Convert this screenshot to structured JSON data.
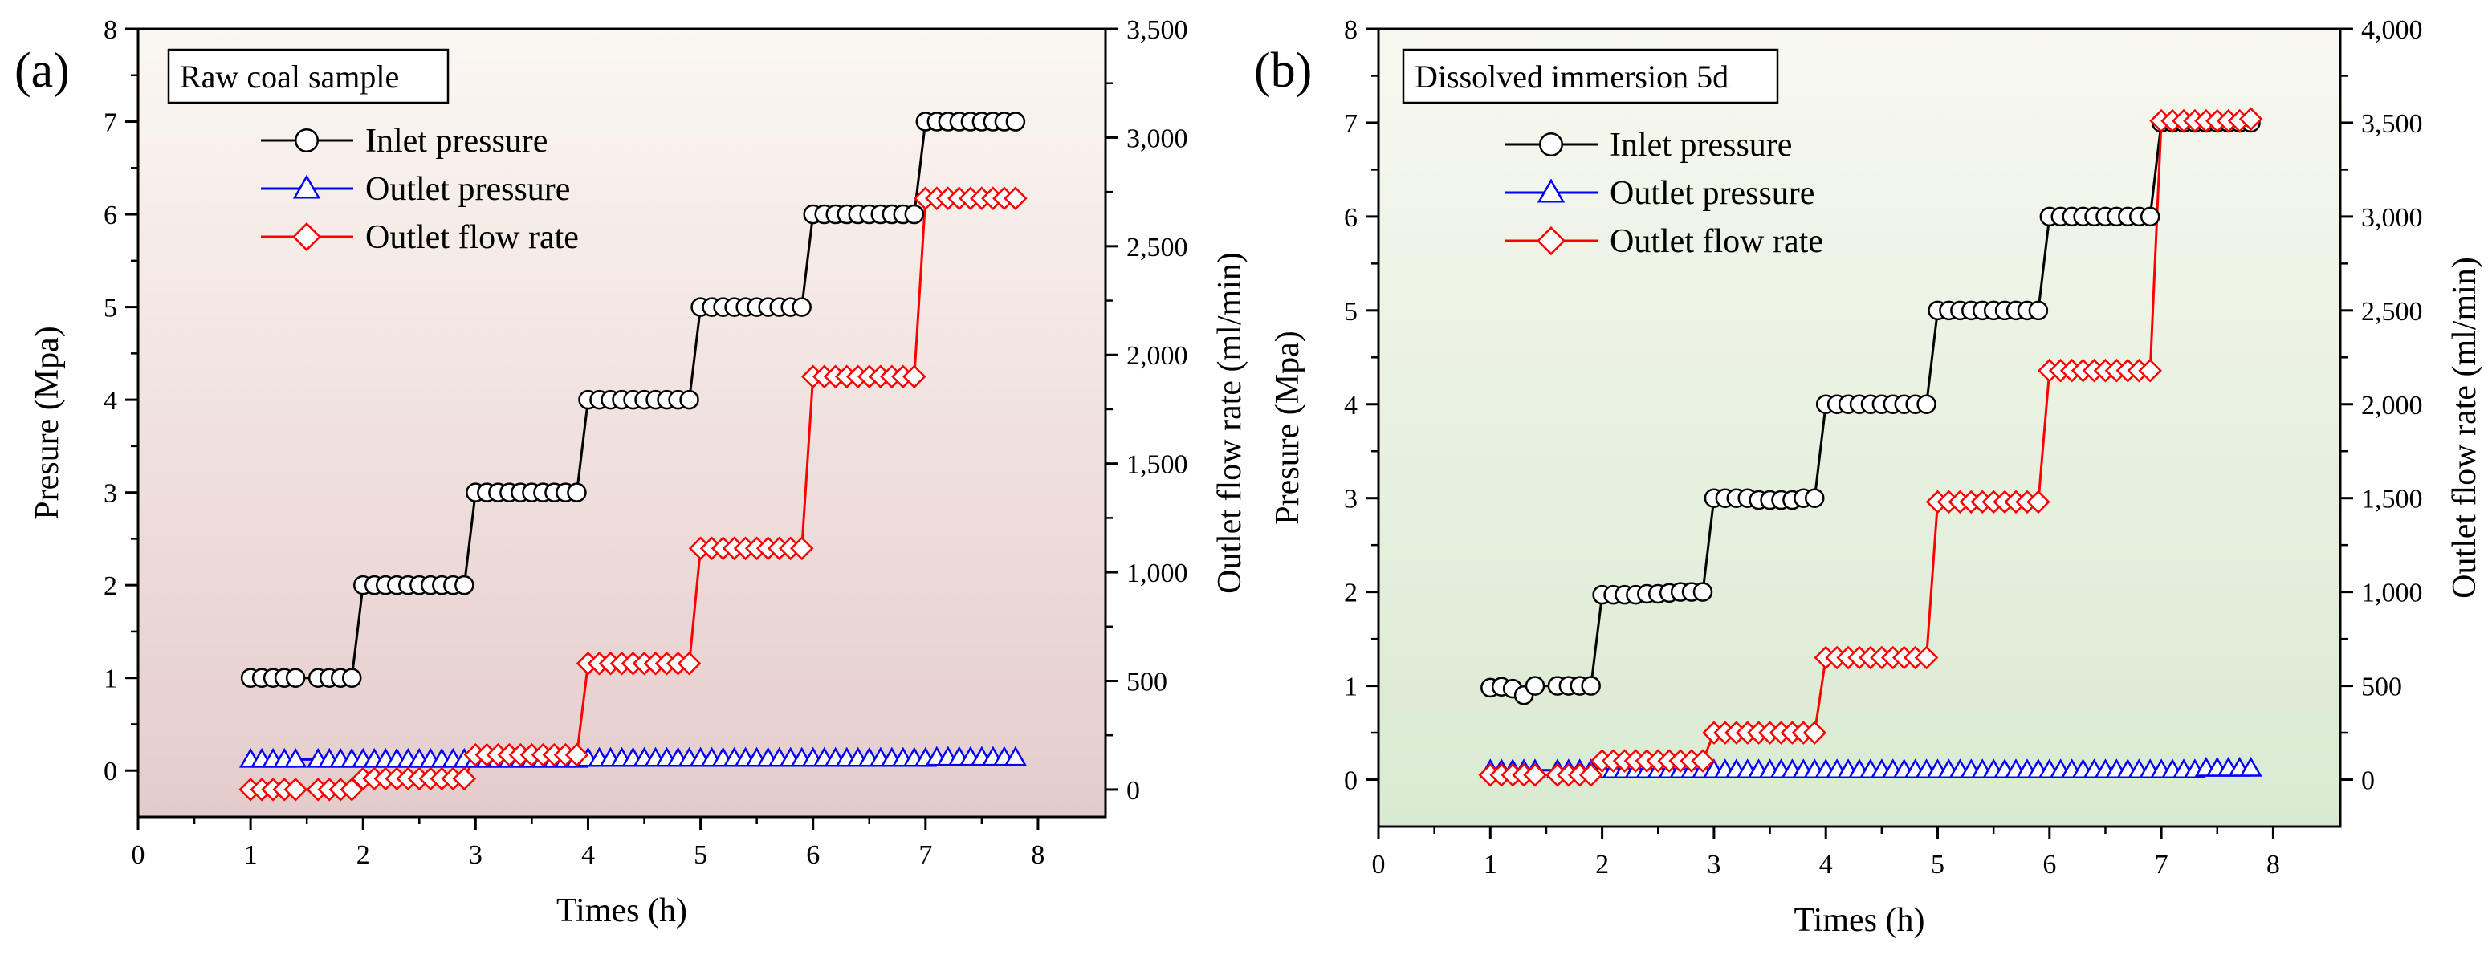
{
  "chart_data": [
    {
      "type": "line",
      "panel_label": "(a)",
      "sample_label": "Raw coal sample",
      "xlabel": "Times (h)",
      "ylabel": "Presure (Mpa)",
      "y2label": "Outlet flow rate (ml/min)",
      "xlim": [
        0,
        8.6
      ],
      "ylim": [
        -0.5,
        8
      ],
      "y2lim": [
        -125.85,
        3500
      ],
      "x_ticks": [
        "0",
        "1",
        "2",
        "3",
        "4",
        "5",
        "6",
        "7",
        "8"
      ],
      "y_ticks": [
        "0",
        "1",
        "2",
        "3",
        "4",
        "5",
        "6",
        "7",
        "8"
      ],
      "y2_ticks": [
        "0",
        "500",
        "1,000",
        "1,500",
        "2,000",
        "2,500",
        "3,000",
        "3,500"
      ],
      "legend": [
        "Inlet pressure",
        "Outlet pressure",
        "Outlet flow rate"
      ],
      "series": [
        {
          "name": "Inlet pressure",
          "axis": "left",
          "color": "#000000",
          "marker": "circle",
          "x": [
            1,
            1.1,
            1.2,
            1.3,
            1.4,
            1.6,
            1.7,
            1.8,
            1.9,
            2,
            2.1,
            2.2,
            2.3,
            2.4,
            2.5,
            2.6,
            2.7,
            2.8,
            2.9,
            3,
            3.1,
            3.2,
            3.3,
            3.4,
            3.5,
            3.6,
            3.7,
            3.8,
            3.9,
            4,
            4.1,
            4.2,
            4.3,
            4.4,
            4.5,
            4.6,
            4.7,
            4.8,
            4.9,
            5,
            5.1,
            5.2,
            5.3,
            5.4,
            5.5,
            5.6,
            5.7,
            5.8,
            5.9,
            6,
            6.1,
            6.2,
            6.3,
            6.4,
            6.5,
            6.6,
            6.7,
            6.8,
            6.9,
            7,
            7.1,
            7.2,
            7.3,
            7.4,
            7.5,
            7.6,
            7.7,
            7.8
          ],
          "y": [
            1,
            1,
            1,
            1,
            1,
            1,
            1,
            1,
            1,
            2,
            2,
            2,
            2,
            2,
            2,
            2,
            2,
            2,
            2,
            3,
            3,
            3,
            3,
            3,
            3,
            3,
            3,
            3,
            3,
            4,
            4,
            4,
            4,
            4,
            4,
            4,
            4,
            4,
            4,
            5,
            5,
            5,
            5,
            5,
            5,
            5,
            5,
            5,
            5,
            6,
            6,
            6,
            6,
            6,
            6,
            6,
            6,
            6,
            6,
            7,
            7,
            7,
            7,
            7,
            7,
            7,
            7,
            7
          ]
        },
        {
          "name": "Outlet pressure",
          "axis": "left",
          "color": "#0000ff",
          "marker": "triangle",
          "x": [
            1,
            1.1,
            1.2,
            1.3,
            1.4,
            1.6,
            1.7,
            1.8,
            1.9,
            2,
            2.1,
            2.2,
            2.3,
            2.4,
            2.5,
            2.6,
            2.7,
            2.8,
            2.9,
            3,
            3.1,
            3.2,
            3.3,
            3.4,
            3.5,
            3.6,
            3.7,
            3.8,
            3.9,
            4,
            4.1,
            4.2,
            4.3,
            4.4,
            4.5,
            4.6,
            4.7,
            4.8,
            4.9,
            5,
            5.1,
            5.2,
            5.3,
            5.4,
            5.5,
            5.6,
            5.7,
            5.8,
            5.9,
            6,
            6.1,
            6.2,
            6.3,
            6.4,
            6.5,
            6.6,
            6.7,
            6.8,
            6.9,
            7,
            7.1,
            7.2,
            7.3,
            7.4,
            7.5,
            7.6,
            7.7,
            7.8
          ],
          "y": [
            0.12,
            0.12,
            0.12,
            0.12,
            0.12,
            0.12,
            0.12,
            0.12,
            0.12,
            0.12,
            0.12,
            0.12,
            0.12,
            0.12,
            0.12,
            0.12,
            0.12,
            0.12,
            0.12,
            0.12,
            0.12,
            0.12,
            0.12,
            0.12,
            0.12,
            0.12,
            0.12,
            0.12,
            0.12,
            0.13,
            0.13,
            0.13,
            0.13,
            0.13,
            0.13,
            0.13,
            0.13,
            0.13,
            0.13,
            0.13,
            0.13,
            0.13,
            0.13,
            0.13,
            0.13,
            0.13,
            0.13,
            0.13,
            0.13,
            0.13,
            0.13,
            0.13,
            0.13,
            0.13,
            0.13,
            0.13,
            0.13,
            0.13,
            0.13,
            0.13,
            0.14,
            0.14,
            0.14,
            0.14,
            0.14,
            0.14,
            0.14,
            0.14
          ]
        },
        {
          "name": "Outlet flow rate",
          "axis": "right",
          "color": "#ff0000",
          "marker": "diamond",
          "x": [
            1,
            1.1,
            1.2,
            1.3,
            1.4,
            1.6,
            1.7,
            1.8,
            1.9,
            2,
            2.1,
            2.2,
            2.3,
            2.4,
            2.5,
            2.6,
            2.7,
            2.8,
            2.9,
            3,
            3.1,
            3.2,
            3.3,
            3.4,
            3.5,
            3.6,
            3.7,
            3.8,
            3.9,
            4,
            4.1,
            4.2,
            4.3,
            4.4,
            4.5,
            4.6,
            4.7,
            4.8,
            4.9,
            5,
            5.1,
            5.2,
            5.3,
            5.4,
            5.5,
            5.6,
            5.7,
            5.8,
            5.9,
            6,
            6.1,
            6.2,
            6.3,
            6.4,
            6.5,
            6.6,
            6.7,
            6.8,
            6.9,
            7,
            7.1,
            7.2,
            7.3,
            7.4,
            7.5,
            7.6,
            7.7,
            7.8
          ],
          "y": [
            0,
            0,
            0,
            0,
            0,
            0,
            0,
            0,
            0,
            50,
            50,
            50,
            50,
            50,
            50,
            50,
            50,
            50,
            50,
            160,
            160,
            160,
            160,
            160,
            160,
            160,
            160,
            160,
            160,
            580,
            580,
            580,
            580,
            580,
            580,
            580,
            580,
            580,
            580,
            1110,
            1110,
            1110,
            1110,
            1110,
            1110,
            1110,
            1110,
            1110,
            1110,
            1900,
            1900,
            1900,
            1900,
            1900,
            1900,
            1900,
            1900,
            1900,
            1900,
            2720,
            2720,
            2720,
            2720,
            2720,
            2720,
            2720,
            2720,
            2720
          ]
        }
      ]
    },
    {
      "type": "line",
      "panel_label": "(b)",
      "sample_label": "Dissolved immersion 5d",
      "xlabel": "Times (h)",
      "ylabel": "Presure (Mpa)",
      "y2label": "Outlet flow rate (ml/min)",
      "xlim": [
        0,
        8.6
      ],
      "ylim": [
        -0.5,
        8
      ],
      "y2lim": [
        -250,
        4000
      ],
      "x_ticks": [
        "0",
        "1",
        "2",
        "3",
        "4",
        "5",
        "6",
        "7",
        "8"
      ],
      "y_ticks": [
        "0",
        "1",
        "2",
        "3",
        "4",
        "5",
        "6",
        "7",
        "8"
      ],
      "y2_ticks": [
        "0",
        "500",
        "1,000",
        "1,500",
        "2,000",
        "2,500",
        "3,000",
        "3,500",
        "4,000"
      ],
      "legend": [
        "Inlet pressure",
        "Outlet pressure",
        "Outlet flow rate"
      ],
      "series": [
        {
          "name": "Inlet pressure",
          "axis": "left",
          "color": "#000000",
          "marker": "circle",
          "x": [
            1,
            1.1,
            1.2,
            1.3,
            1.4,
            1.6,
            1.7,
            1.8,
            1.9,
            2,
            2.1,
            2.2,
            2.3,
            2.4,
            2.5,
            2.6,
            2.7,
            2.8,
            2.9,
            3,
            3.1,
            3.2,
            3.3,
            3.4,
            3.5,
            3.6,
            3.7,
            3.8,
            3.9,
            4,
            4.1,
            4.2,
            4.3,
            4.4,
            4.5,
            4.6,
            4.7,
            4.8,
            4.9,
            5,
            5.1,
            5.2,
            5.3,
            5.4,
            5.5,
            5.6,
            5.7,
            5.8,
            5.9,
            6,
            6.1,
            6.2,
            6.3,
            6.4,
            6.5,
            6.6,
            6.7,
            6.8,
            6.9,
            7,
            7.1,
            7.2,
            7.3,
            7.4,
            7.5,
            7.6,
            7.7,
            7.8
          ],
          "y": [
            0.98,
            0.99,
            0.97,
            0.9,
            1,
            1,
            1,
            1,
            1,
            1.97,
            1.97,
            1.97,
            1.97,
            1.98,
            1.98,
            1.99,
            2,
            2,
            2,
            3,
            3,
            3,
            3,
            2.98,
            2.98,
            2.98,
            2.98,
            3,
            3,
            4,
            4,
            4,
            4,
            4,
            4,
            4,
            4,
            4,
            4,
            5,
            5,
            5,
            5,
            5,
            5,
            5,
            5,
            5,
            5,
            6,
            6,
            6,
            6,
            6,
            6,
            6,
            6,
            6,
            6,
            7,
            7,
            7,
            7,
            7,
            7,
            7,
            7,
            7
          ]
        },
        {
          "name": "Outlet pressure",
          "axis": "left",
          "color": "#0000ff",
          "marker": "triangle",
          "x": [
            1,
            1.1,
            1.2,
            1.3,
            1.4,
            1.6,
            1.7,
            1.8,
            1.9,
            2,
            2.1,
            2.2,
            2.3,
            2.4,
            2.5,
            2.6,
            2.7,
            2.8,
            2.9,
            3,
            3.1,
            3.2,
            3.3,
            3.4,
            3.5,
            3.6,
            3.7,
            3.8,
            3.9,
            4,
            4.1,
            4.2,
            4.3,
            4.4,
            4.5,
            4.6,
            4.7,
            4.8,
            4.9,
            5,
            5.1,
            5.2,
            5.3,
            5.4,
            5.5,
            5.6,
            5.7,
            5.8,
            5.9,
            6,
            6.1,
            6.2,
            6.3,
            6.4,
            6.5,
            6.6,
            6.7,
            6.8,
            6.9,
            7,
            7.1,
            7.2,
            7.3,
            7.4,
            7.5,
            7.6,
            7.7,
            7.8
          ],
          "y": [
            0.1,
            0.1,
            0.1,
            0.1,
            0.1,
            0.1,
            0.1,
            0.1,
            0.1,
            0.1,
            0.1,
            0.1,
            0.1,
            0.1,
            0.1,
            0.1,
            0.1,
            0.1,
            0.1,
            0.1,
            0.1,
            0.1,
            0.1,
            0.1,
            0.1,
            0.1,
            0.1,
            0.1,
            0.1,
            0.1,
            0.1,
            0.1,
            0.1,
            0.1,
            0.1,
            0.1,
            0.1,
            0.1,
            0.1,
            0.1,
            0.1,
            0.1,
            0.1,
            0.1,
            0.1,
            0.1,
            0.1,
            0.1,
            0.1,
            0.1,
            0.1,
            0.1,
            0.1,
            0.1,
            0.1,
            0.1,
            0.1,
            0.1,
            0.1,
            0.1,
            0.1,
            0.1,
            0.1,
            0.12,
            0.12,
            0.12,
            0.12,
            0.12
          ]
        },
        {
          "name": "Outlet flow rate",
          "axis": "right",
          "color": "#ff0000",
          "marker": "diamond",
          "x": [
            1,
            1.1,
            1.2,
            1.3,
            1.4,
            1.6,
            1.7,
            1.8,
            1.9,
            2,
            2.1,
            2.2,
            2.3,
            2.4,
            2.5,
            2.6,
            2.7,
            2.8,
            2.9,
            3,
            3.1,
            3.2,
            3.3,
            3.4,
            3.5,
            3.6,
            3.7,
            3.8,
            3.9,
            4,
            4.1,
            4.2,
            4.3,
            4.4,
            4.5,
            4.6,
            4.7,
            4.8,
            4.9,
            5,
            5.1,
            5.2,
            5.3,
            5.4,
            5.5,
            5.6,
            5.7,
            5.8,
            5.9,
            6,
            6.1,
            6.2,
            6.3,
            6.4,
            6.5,
            6.6,
            6.7,
            6.8,
            6.9,
            7,
            7.1,
            7.2,
            7.3,
            7.4,
            7.5,
            7.6,
            7.7,
            7.8
          ],
          "y": [
            25,
            25,
            25,
            25,
            25,
            25,
            25,
            25,
            25,
            100,
            100,
            100,
            100,
            100,
            100,
            100,
            100,
            100,
            100,
            250,
            250,
            250,
            250,
            250,
            250,
            250,
            250,
            250,
            250,
            650,
            650,
            650,
            650,
            650,
            650,
            650,
            650,
            650,
            650,
            1480,
            1480,
            1480,
            1480,
            1480,
            1480,
            1480,
            1480,
            1480,
            1480,
            2180,
            2180,
            2180,
            2180,
            2180,
            2180,
            2180,
            2180,
            2180,
            2180,
            3510,
            3510,
            3510,
            3510,
            3510,
            3510,
            3510,
            3510,
            3520
          ]
        }
      ]
    }
  ]
}
